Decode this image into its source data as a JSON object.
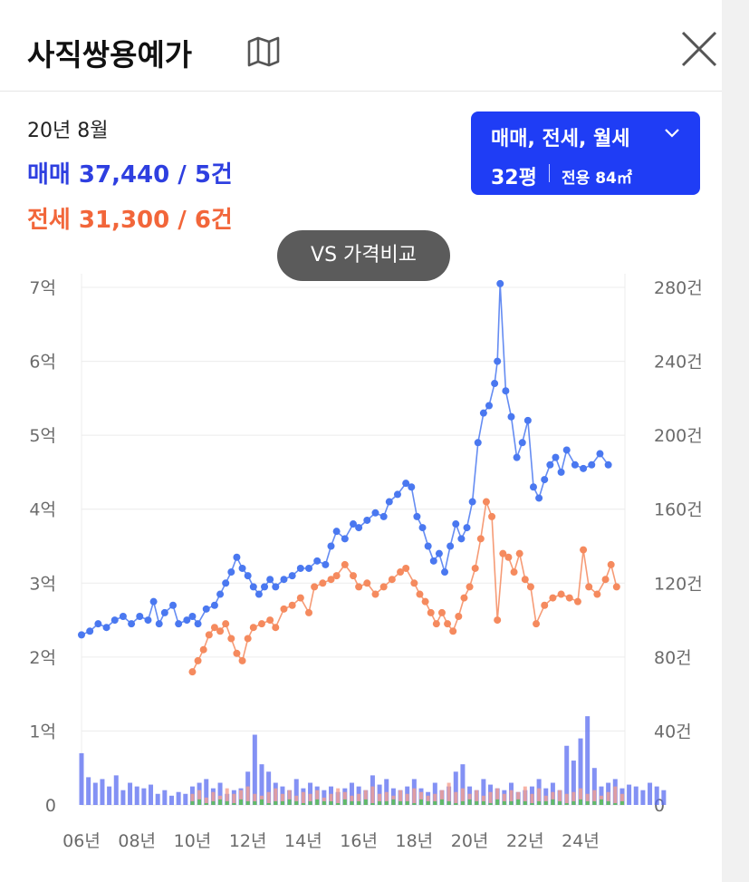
{
  "header": {
    "title": "사직쌍용예가",
    "map_icon": "map-icon",
    "close_icon": "close-icon"
  },
  "summary": {
    "date": "20년 8월",
    "sale_text": "매매 37,440 / 5건",
    "jeonse_text": "전세 31,300 / 6건"
  },
  "filter": {
    "types": "매매, 전세, 월세",
    "size": "32평",
    "area": "전용 84㎡"
  },
  "vs_button": "VS 가격비교",
  "colors": {
    "accent": "#1f3df5",
    "sale": "#2e3fe0",
    "jeonse": "#f2663a",
    "sale_line": "#4a78f0",
    "jeonse_line": "#f58a5e",
    "volume_sale": "#5a6cf0",
    "volume_jeonse": "#f5a090",
    "volume_monthly": "#42c25a"
  },
  "chart_data": {
    "type": "line",
    "x_ticks": [
      "06년",
      "08년",
      "10년",
      "12년",
      "14년",
      "16년",
      "18년",
      "20년",
      "22년",
      "24년"
    ],
    "y_left_ticks": [
      "0",
      "1억",
      "2억",
      "3억",
      "4억",
      "5억",
      "6억",
      "7억"
    ],
    "y_right_ticks": [
      "0",
      "40건",
      "80건",
      "120건",
      "160건",
      "200건",
      "240건",
      "280건"
    ],
    "y_left_range": [
      0,
      7
    ],
    "y_right_range": [
      0,
      280
    ],
    "x_range": [
      2006,
      2025.6
    ],
    "grid": true,
    "series": [
      {
        "name": "매매",
        "unit": "억",
        "points": [
          [
            2006.0,
            2.3
          ],
          [
            2006.3,
            2.35
          ],
          [
            2006.6,
            2.45
          ],
          [
            2006.9,
            2.4
          ],
          [
            2007.2,
            2.5
          ],
          [
            2007.5,
            2.55
          ],
          [
            2007.8,
            2.45
          ],
          [
            2008.1,
            2.55
          ],
          [
            2008.4,
            2.5
          ],
          [
            2008.6,
            2.75
          ],
          [
            2008.8,
            2.45
          ],
          [
            2009.0,
            2.6
          ],
          [
            2009.3,
            2.7
          ],
          [
            2009.5,
            2.45
          ],
          [
            2009.8,
            2.5
          ],
          [
            2010.0,
            2.55
          ],
          [
            2010.2,
            2.45
          ],
          [
            2010.5,
            2.65
          ],
          [
            2010.8,
            2.7
          ],
          [
            2011.0,
            2.85
          ],
          [
            2011.2,
            3.0
          ],
          [
            2011.4,
            3.15
          ],
          [
            2011.6,
            3.35
          ],
          [
            2011.8,
            3.2
          ],
          [
            2012.0,
            3.1
          ],
          [
            2012.2,
            2.95
          ],
          [
            2012.4,
            2.85
          ],
          [
            2012.6,
            2.95
          ],
          [
            2012.8,
            3.05
          ],
          [
            2013.0,
            2.95
          ],
          [
            2013.3,
            3.05
          ],
          [
            2013.6,
            3.1
          ],
          [
            2013.9,
            3.2
          ],
          [
            2014.2,
            3.2
          ],
          [
            2014.5,
            3.3
          ],
          [
            2014.8,
            3.25
          ],
          [
            2015.0,
            3.5
          ],
          [
            2015.2,
            3.7
          ],
          [
            2015.5,
            3.6
          ],
          [
            2015.8,
            3.8
          ],
          [
            2016.0,
            3.75
          ],
          [
            2016.3,
            3.85
          ],
          [
            2016.6,
            3.95
          ],
          [
            2016.9,
            3.9
          ],
          [
            2017.1,
            4.1
          ],
          [
            2017.4,
            4.2
          ],
          [
            2017.7,
            4.35
          ],
          [
            2017.9,
            4.3
          ],
          [
            2018.1,
            3.9
          ],
          [
            2018.3,
            3.75
          ],
          [
            2018.5,
            3.5
          ],
          [
            2018.7,
            3.3
          ],
          [
            2018.9,
            3.4
          ],
          [
            2019.1,
            3.15
          ],
          [
            2019.3,
            3.5
          ],
          [
            2019.5,
            3.8
          ],
          [
            2019.7,
            3.6
          ],
          [
            2019.9,
            3.75
          ],
          [
            2020.1,
            4.1
          ],
          [
            2020.3,
            4.9
          ],
          [
            2020.5,
            5.3
          ],
          [
            2020.7,
            5.4
          ],
          [
            2020.9,
            5.7
          ],
          [
            2021.0,
            6.0
          ],
          [
            2021.1,
            7.05
          ],
          [
            2021.3,
            5.6
          ],
          [
            2021.5,
            5.25
          ],
          [
            2021.7,
            4.7
          ],
          [
            2021.9,
            4.9
          ],
          [
            2022.1,
            5.2
          ],
          [
            2022.3,
            4.3
          ],
          [
            2022.5,
            4.15
          ],
          [
            2022.7,
            4.4
          ],
          [
            2022.9,
            4.6
          ],
          [
            2023.1,
            4.7
          ],
          [
            2023.3,
            4.5
          ],
          [
            2023.5,
            4.8
          ],
          [
            2023.8,
            4.6
          ],
          [
            2024.1,
            4.55
          ],
          [
            2024.4,
            4.6
          ],
          [
            2024.7,
            4.75
          ],
          [
            2025.0,
            4.6
          ]
        ]
      },
      {
        "name": "전세",
        "unit": "억",
        "points": [
          [
            2010.0,
            1.8
          ],
          [
            2010.2,
            1.95
          ],
          [
            2010.4,
            2.1
          ],
          [
            2010.6,
            2.3
          ],
          [
            2010.8,
            2.4
          ],
          [
            2011.0,
            2.35
          ],
          [
            2011.2,
            2.45
          ],
          [
            2011.4,
            2.25
          ],
          [
            2011.6,
            2.05
          ],
          [
            2011.8,
            1.95
          ],
          [
            2012.0,
            2.25
          ],
          [
            2012.2,
            2.4
          ],
          [
            2012.5,
            2.45
          ],
          [
            2012.8,
            2.5
          ],
          [
            2013.0,
            2.4
          ],
          [
            2013.3,
            2.65
          ],
          [
            2013.6,
            2.7
          ],
          [
            2013.9,
            2.8
          ],
          [
            2014.2,
            2.6
          ],
          [
            2014.4,
            2.95
          ],
          [
            2014.7,
            3.0
          ],
          [
            2015.0,
            3.05
          ],
          [
            2015.2,
            3.1
          ],
          [
            2015.5,
            3.25
          ],
          [
            2015.8,
            3.1
          ],
          [
            2016.0,
            2.95
          ],
          [
            2016.3,
            3.0
          ],
          [
            2016.6,
            2.85
          ],
          [
            2016.9,
            2.95
          ],
          [
            2017.2,
            3.05
          ],
          [
            2017.5,
            3.15
          ],
          [
            2017.7,
            3.2
          ],
          [
            2018.0,
            3.0
          ],
          [
            2018.2,
            2.85
          ],
          [
            2018.4,
            2.75
          ],
          [
            2018.6,
            2.6
          ],
          [
            2018.8,
            2.45
          ],
          [
            2019.0,
            2.6
          ],
          [
            2019.2,
            2.45
          ],
          [
            2019.4,
            2.35
          ],
          [
            2019.6,
            2.55
          ],
          [
            2019.8,
            2.8
          ],
          [
            2020.0,
            2.95
          ],
          [
            2020.2,
            3.2
          ],
          [
            2020.4,
            3.6
          ],
          [
            2020.6,
            4.1
          ],
          [
            2020.8,
            3.9
          ],
          [
            2021.0,
            2.5
          ],
          [
            2021.2,
            3.4
          ],
          [
            2021.4,
            3.35
          ],
          [
            2021.6,
            3.15
          ],
          [
            2021.8,
            3.4
          ],
          [
            2022.0,
            3.05
          ],
          [
            2022.2,
            2.95
          ],
          [
            2022.4,
            2.45
          ],
          [
            2022.7,
            2.7
          ],
          [
            2023.0,
            2.8
          ],
          [
            2023.3,
            2.85
          ],
          [
            2023.6,
            2.8
          ],
          [
            2023.9,
            2.75
          ],
          [
            2024.1,
            3.45
          ],
          [
            2024.3,
            2.95
          ],
          [
            2024.6,
            2.85
          ],
          [
            2024.9,
            3.05
          ],
          [
            2025.1,
            3.25
          ],
          [
            2025.3,
            2.95
          ]
        ]
      },
      {
        "name": "매매 거래량",
        "unit": "건",
        "axis": "right",
        "values_start": 2006.0,
        "values_step": 0.25,
        "values": [
          28,
          15,
          12,
          14,
          10,
          16,
          8,
          12,
          10,
          9,
          11,
          6,
          8,
          5,
          7,
          6,
          10,
          12,
          14,
          9,
          12,
          6,
          8,
          9,
          18,
          38,
          22,
          18,
          12,
          10,
          8,
          14,
          9,
          12,
          10,
          8,
          10,
          7,
          9,
          12,
          10,
          8,
          16,
          11,
          14,
          9,
          8,
          10,
          14,
          9,
          7,
          12,
          8,
          10,
          18,
          22,
          10,
          8,
          14,
          11,
          9,
          8,
          12,
          7,
          8,
          10,
          14,
          9,
          12,
          8,
          32,
          24,
          36,
          48,
          20,
          10,
          12,
          14,
          9,
          11,
          10,
          8,
          12,
          10,
          8
        ]
      },
      {
        "name": "전세 거래량",
        "unit": "건",
        "axis": "right",
        "values_start": 2010.0,
        "values_step": 0.25,
        "values": [
          6,
          8,
          4,
          7,
          5,
          9,
          6,
          8,
          10,
          6,
          5,
          7,
          9,
          6,
          8,
          5,
          7,
          6,
          8,
          4,
          6,
          9,
          7,
          5,
          6,
          8,
          10,
          6,
          7,
          5,
          8,
          6,
          9,
          7,
          5,
          6,
          8,
          12,
          7,
          9,
          6,
          8,
          5,
          7,
          9,
          6,
          8,
          7,
          10,
          6,
          9,
          5,
          7,
          8,
          6,
          7,
          9,
          6,
          8,
          5,
          7,
          10,
          6
        ]
      },
      {
        "name": "월세 거래량",
        "unit": "건",
        "axis": "right",
        "values_start": 2010.0,
        "values_step": 0.25,
        "values": [
          2,
          3,
          1,
          2,
          3,
          2,
          1,
          3,
          2,
          2,
          3,
          1,
          2,
          2,
          3,
          2,
          1,
          2,
          3,
          2,
          2,
          1,
          3,
          2,
          2,
          3,
          1,
          2,
          2,
          3,
          2,
          2,
          1,
          3,
          2,
          2,
          3,
          2,
          1,
          2,
          3,
          2,
          2,
          1,
          3,
          2,
          2,
          3,
          2,
          1,
          2,
          2,
          3,
          2,
          1,
          2,
          3,
          2,
          2,
          3,
          2,
          1,
          2
        ]
      }
    ]
  }
}
